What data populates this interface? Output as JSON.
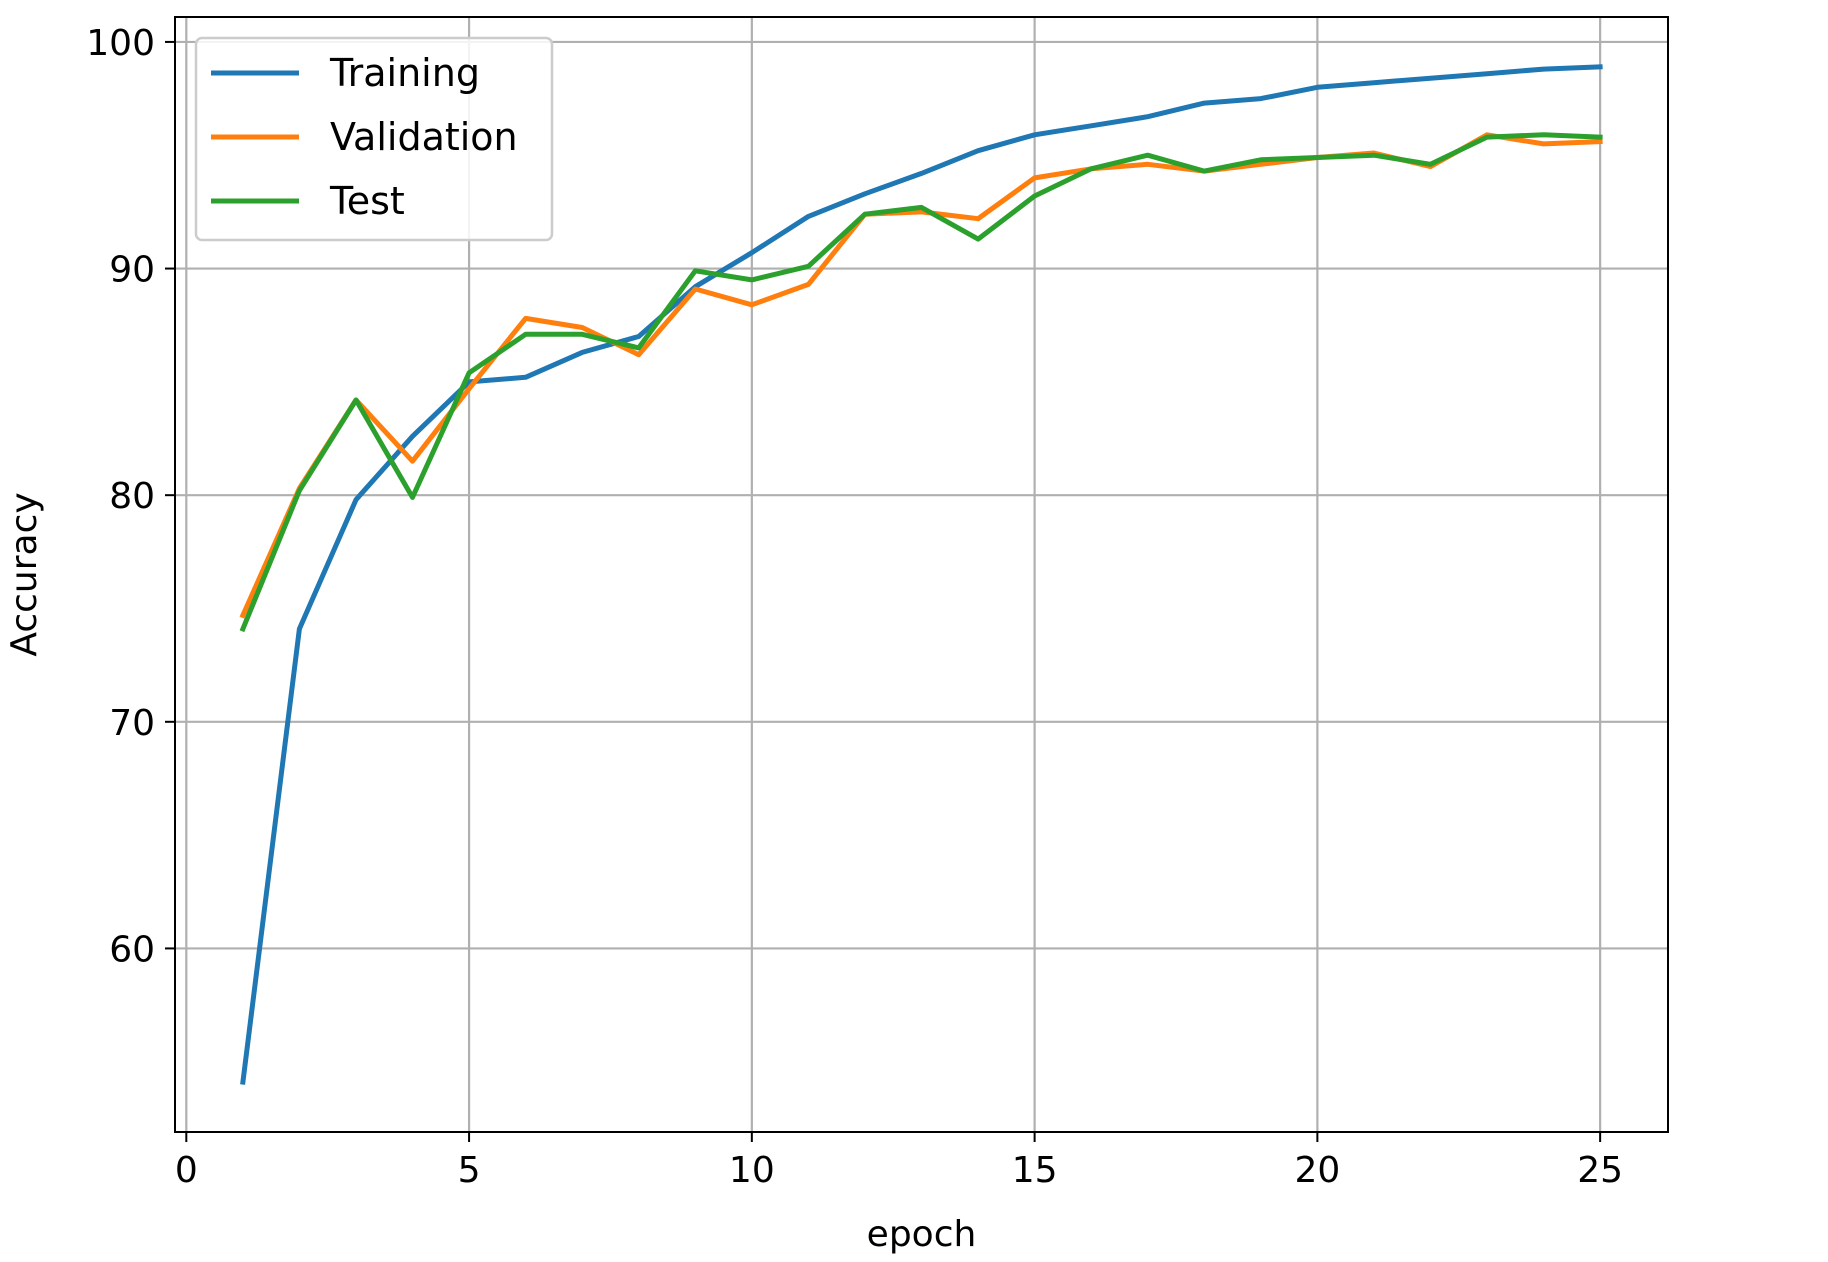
{
  "chart_data": {
    "type": "line",
    "title": "",
    "xlabel": "epoch",
    "ylabel": "Accuracy",
    "xlim": [
      -0.2,
      26.2
    ],
    "ylim": [
      51.9,
      101.1
    ],
    "xticks": [
      0,
      5,
      10,
      15,
      20,
      25
    ],
    "yticks": [
      60,
      70,
      80,
      90,
      100
    ],
    "grid": true,
    "legend_position": "top-left",
    "x": [
      1,
      2,
      3,
      4,
      5,
      6,
      7,
      8,
      9,
      10,
      11,
      12,
      13,
      14,
      15,
      16,
      17,
      18,
      19,
      20,
      21,
      22,
      23,
      24,
      25
    ],
    "series": [
      {
        "name": "Training",
        "color": "#1f77b4",
        "values": [
          54.1,
          74.1,
          79.8,
          82.6,
          85.0,
          85.2,
          86.3,
          87.0,
          89.2,
          90.7,
          92.3,
          93.3,
          94.2,
          95.2,
          95.9,
          96.3,
          96.7,
          97.3,
          97.5,
          98.0,
          98.2,
          98.4,
          98.6,
          98.8,
          98.9
        ]
      },
      {
        "name": "Validation",
        "color": "#ff7f0e",
        "values": [
          74.7,
          80.3,
          84.2,
          81.5,
          84.7,
          87.8,
          87.4,
          86.2,
          89.1,
          88.4,
          89.3,
          92.4,
          92.5,
          92.2,
          94.0,
          94.4,
          94.6,
          94.3,
          94.6,
          94.9,
          95.1,
          94.5,
          95.9,
          95.5,
          95.6
        ]
      },
      {
        "name": "Test",
        "color": "#2ca02c",
        "values": [
          74.1,
          80.2,
          84.2,
          79.9,
          85.4,
          87.1,
          87.1,
          86.5,
          89.9,
          89.5,
          90.1,
          92.4,
          92.7,
          91.3,
          93.2,
          94.4,
          95.0,
          94.3,
          94.8,
          94.9,
          95.0,
          94.6,
          95.8,
          95.9,
          95.8
        ]
      }
    ]
  }
}
